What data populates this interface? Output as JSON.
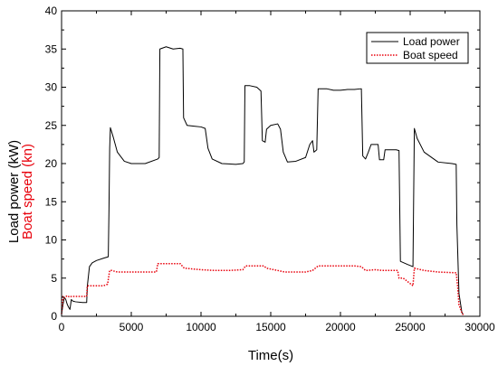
{
  "chart_data": {
    "type": "line",
    "xlabel": "Time(s)",
    "ylabel_parts": [
      {
        "text": "Load power (kW)",
        "color": "#000000"
      },
      {
        "text": "Boat speed (kn)",
        "color": "#e8000b"
      }
    ],
    "xlim": [
      0,
      30000
    ],
    "ylim": [
      0,
      40
    ],
    "x_ticks": [
      0,
      5000,
      10000,
      15000,
      20000,
      25000,
      30000
    ],
    "y_ticks": [
      0,
      5,
      10,
      15,
      20,
      25,
      30,
      35,
      40
    ],
    "grid": false,
    "legend_position": "top-right",
    "series": [
      {
        "name": "Load power",
        "color": "#000000",
        "style": "solid",
        "points": [
          [
            0,
            0.3
          ],
          [
            100,
            1.5
          ],
          [
            200,
            2.5
          ],
          [
            300,
            2.2
          ],
          [
            400,
            1.6
          ],
          [
            500,
            1.2
          ],
          [
            600,
            0.9
          ],
          [
            700,
            2.2
          ],
          [
            800,
            2.0
          ],
          [
            1000,
            1.9
          ],
          [
            1500,
            1.8
          ],
          [
            1800,
            1.8
          ],
          [
            1850,
            4.0
          ],
          [
            2000,
            6.5
          ],
          [
            2200,
            7.0
          ],
          [
            2500,
            7.3
          ],
          [
            3000,
            7.6
          ],
          [
            3350,
            7.8
          ],
          [
            3400,
            14.0
          ],
          [
            3450,
            22.0
          ],
          [
            3500,
            24.7
          ],
          [
            3700,
            23.5
          ],
          [
            4000,
            21.5
          ],
          [
            4500,
            20.3
          ],
          [
            5000,
            20.0
          ],
          [
            6000,
            20.0
          ],
          [
            6900,
            20.6
          ],
          [
            7000,
            20.8
          ],
          [
            7050,
            35.0
          ],
          [
            7500,
            35.3
          ],
          [
            8000,
            35.0
          ],
          [
            8500,
            35.1
          ],
          [
            8700,
            35.0
          ],
          [
            8750,
            26.0
          ],
          [
            9000,
            25.0
          ],
          [
            9500,
            24.9
          ],
          [
            10000,
            24.8
          ],
          [
            10300,
            24.6
          ],
          [
            10500,
            22.0
          ],
          [
            10800,
            20.6
          ],
          [
            11500,
            20.0
          ],
          [
            12500,
            19.9
          ],
          [
            13000,
            20.0
          ],
          [
            13100,
            20.2
          ],
          [
            13150,
            30.2
          ],
          [
            13500,
            30.2
          ],
          [
            14000,
            30.0
          ],
          [
            14300,
            29.5
          ],
          [
            14400,
            23.0
          ],
          [
            14600,
            22.8
          ],
          [
            14700,
            24.5
          ],
          [
            15000,
            25.0
          ],
          [
            15500,
            25.2
          ],
          [
            15700,
            24.5
          ],
          [
            15900,
            21.5
          ],
          [
            16200,
            20.2
          ],
          [
            16800,
            20.3
          ],
          [
            17500,
            20.8
          ],
          [
            17800,
            22.5
          ],
          [
            18000,
            23.0
          ],
          [
            18100,
            21.5
          ],
          [
            18300,
            21.8
          ],
          [
            18400,
            29.8
          ],
          [
            19000,
            29.8
          ],
          [
            19500,
            29.6
          ],
          [
            20000,
            29.6
          ],
          [
            20500,
            29.7
          ],
          [
            21000,
            29.7
          ],
          [
            21500,
            29.8
          ],
          [
            21600,
            21.0
          ],
          [
            21800,
            20.6
          ],
          [
            22000,
            21.5
          ],
          [
            22100,
            22.0
          ],
          [
            22200,
            22.5
          ],
          [
            22700,
            22.5
          ],
          [
            22800,
            20.5
          ],
          [
            23100,
            20.5
          ],
          [
            23200,
            21.8
          ],
          [
            24000,
            21.8
          ],
          [
            24200,
            21.7
          ],
          [
            24300,
            7.2
          ],
          [
            24800,
            6.8
          ],
          [
            25200,
            6.5
          ],
          [
            25300,
            24.6
          ],
          [
            25500,
            23.3
          ],
          [
            26000,
            21.5
          ],
          [
            27000,
            20.2
          ],
          [
            28000,
            20.0
          ],
          [
            28300,
            19.9
          ],
          [
            28350,
            12.0
          ],
          [
            28500,
            3.0
          ],
          [
            28700,
            0.6
          ],
          [
            28800,
            0.2
          ]
        ]
      },
      {
        "name": "Boat speed",
        "color": "#e8000b",
        "style": "dotted",
        "points": [
          [
            0,
            0.3
          ],
          [
            100,
            2.6
          ],
          [
            200,
            2.4
          ],
          [
            400,
            2.7
          ],
          [
            600,
            2.5
          ],
          [
            700,
            2.6
          ],
          [
            1800,
            2.6
          ],
          [
            1850,
            4.0
          ],
          [
            2500,
            4.0
          ],
          [
            3000,
            4.0
          ],
          [
            3300,
            4.2
          ],
          [
            3450,
            6.0
          ],
          [
            3600,
            6.0
          ],
          [
            4000,
            5.8
          ],
          [
            5500,
            5.8
          ],
          [
            6800,
            5.8
          ],
          [
            6900,
            6.9
          ],
          [
            8500,
            6.9
          ],
          [
            8800,
            6.3
          ],
          [
            10000,
            6.1
          ],
          [
            11000,
            6.0
          ],
          [
            12000,
            6.0
          ],
          [
            13000,
            6.1
          ],
          [
            13200,
            6.6
          ],
          [
            14500,
            6.6
          ],
          [
            14700,
            6.3
          ],
          [
            15500,
            6.0
          ],
          [
            16000,
            5.8
          ],
          [
            17500,
            5.8
          ],
          [
            18000,
            6.0
          ],
          [
            18400,
            6.6
          ],
          [
            21000,
            6.6
          ],
          [
            21500,
            6.5
          ],
          [
            21800,
            6.0
          ],
          [
            22500,
            6.1
          ],
          [
            23000,
            6.0
          ],
          [
            24100,
            6.0
          ],
          [
            24200,
            5.0
          ],
          [
            24500,
            5.0
          ],
          [
            25200,
            4.0
          ],
          [
            25300,
            6.3
          ],
          [
            26000,
            6.0
          ],
          [
            27000,
            5.8
          ],
          [
            28300,
            5.7
          ],
          [
            28400,
            4.0
          ],
          [
            28500,
            1.5
          ],
          [
            28700,
            0.5
          ],
          [
            28800,
            0.2
          ]
        ]
      }
    ]
  }
}
